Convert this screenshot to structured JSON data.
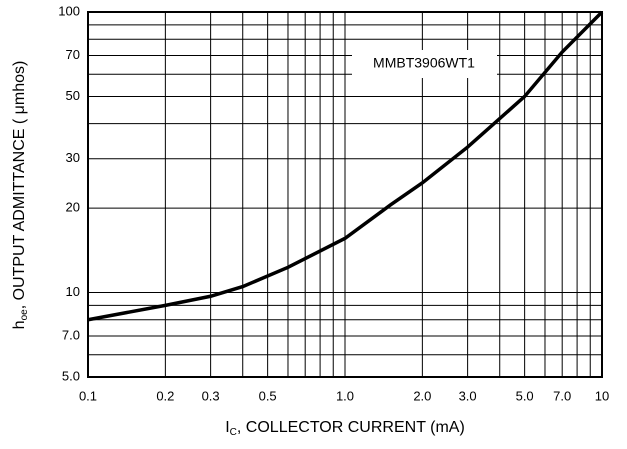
{
  "chart_data": {
    "type": "line",
    "x_label": {
      "symbol": "I",
      "subscript": "C",
      "text": ", COLLECTOR CURRENT (mA)"
    },
    "y_label": {
      "symbol": "h",
      "subscript": "oe",
      "text": ", OUTPUT ADMITTANCE ( μmhos)"
    },
    "annotation": "MMBT3906WT1",
    "xscale": "log",
    "yscale": "log",
    "grid": true,
    "xlim": [
      0.1,
      10
    ],
    "ylim": [
      5,
      100
    ],
    "xticks": [
      0.1,
      0.2,
      0.3,
      0.5,
      {
        "value": 1,
        "label": "1.0"
      },
      {
        "value": 2,
        "label": "2.0"
      },
      {
        "value": 3,
        "label": "3.0"
      },
      {
        "value": 5,
        "label": "5.0"
      },
      {
        "value": 7,
        "label": "7.0"
      },
      10
    ],
    "yticks": [
      {
        "value": 5,
        "label": "5.0"
      },
      {
        "value": 7,
        "label": "7.0"
      },
      10,
      20,
      30,
      50,
      70,
      100
    ],
    "xminor_ticks": [
      0.4,
      0.6,
      0.7,
      0.8,
      0.9,
      4,
      6,
      8,
      9
    ],
    "yminor_ticks": [
      6,
      8,
      9,
      40,
      60,
      80,
      90
    ],
    "series": [
      {
        "color": "#000000",
        "x": [
          0.1,
          0.2,
          0.3,
          0.4,
          0.6,
          1.0,
          1.5,
          2.0,
          3.0,
          5.0,
          7.0,
          10
        ],
        "values": [
          8.0,
          9.0,
          9.7,
          10.5,
          12.3,
          15.6,
          20.5,
          24.6,
          33,
          50,
          72,
          100
        ]
      }
    ]
  }
}
